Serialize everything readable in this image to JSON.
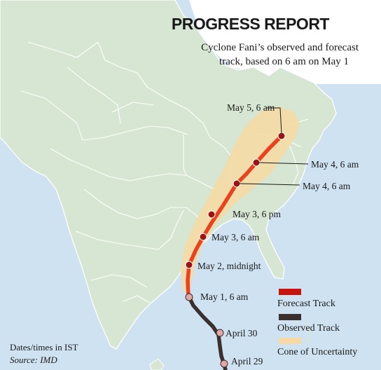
{
  "header": {
    "title": "PROGRESS REPORT",
    "subtitle_line1": "Cyclone Fani’s observed and forecast",
    "subtitle_line2": "track, based on 6 am on May 1"
  },
  "labels": {
    "may5_6am": "May 5, 6 am",
    "may4_6am_a": "May 4, 6 am",
    "may4_6am_b": "May 4, 6 am",
    "may3_6pm": "May 3, 6 pm",
    "may3_6am": "May 3, 6 am",
    "may2_midnight": "May 2, midnight",
    "may1_6am": "May 1, 6 am",
    "april30": "April 30",
    "april29": "April 29"
  },
  "legend": {
    "forecast": "Forecast Track",
    "observed": "Observed Track",
    "cone": "Cone of Uncertainty"
  },
  "footer": {
    "dates_note": "Dates/times in IST",
    "source": "Source: IMD"
  },
  "colors": {
    "sea": "#cfe2f1",
    "land": "#d6e6d2",
    "border": "#ffffff",
    "forecast_track": "#e8431e",
    "observed_track": "#3b302d",
    "cone": "#f6d9a3",
    "point": "#9b1414",
    "observed_point": "#e4a6a6",
    "legend_forecast": "#c8130f"
  }
}
